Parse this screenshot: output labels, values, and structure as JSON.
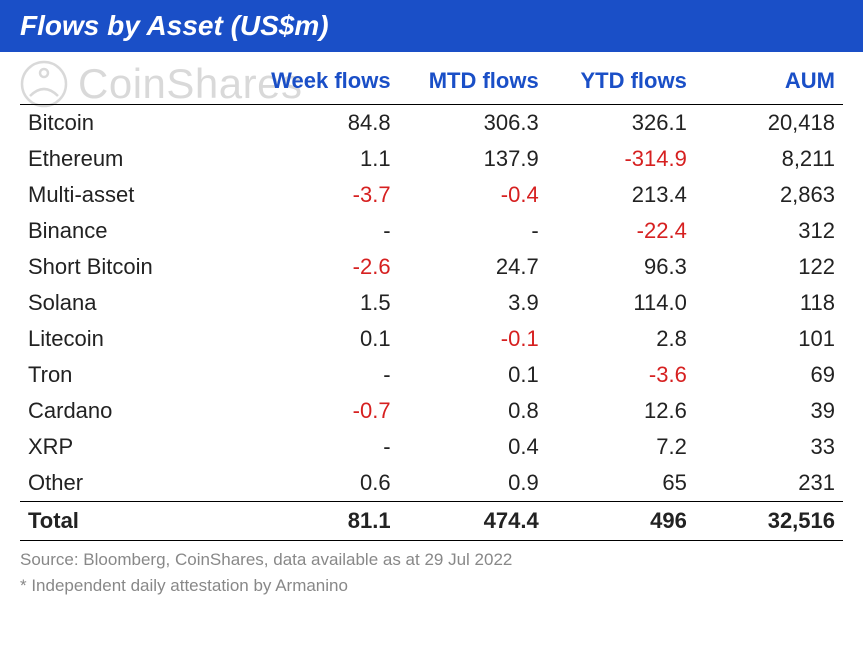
{
  "title": "Flows by Asset (US$m)",
  "watermark": "CoinShares",
  "columns": [
    "",
    "Week flows",
    "MTD flows",
    "YTD flows",
    "AUM"
  ],
  "rows": [
    {
      "asset": "Bitcoin",
      "week": "84.8",
      "week_neg": false,
      "mtd": "306.3",
      "mtd_neg": false,
      "ytd": "326.1",
      "ytd_neg": false,
      "aum": "20,418"
    },
    {
      "asset": "Ethereum",
      "week": "1.1",
      "week_neg": false,
      "mtd": "137.9",
      "mtd_neg": false,
      "ytd": "-314.9",
      "ytd_neg": true,
      "aum": "8,211"
    },
    {
      "asset": "Multi-asset",
      "week": "-3.7",
      "week_neg": true,
      "mtd": "-0.4",
      "mtd_neg": true,
      "ytd": "213.4",
      "ytd_neg": false,
      "aum": "2,863"
    },
    {
      "asset": "Binance",
      "week": "-",
      "week_neg": false,
      "mtd": "-",
      "mtd_neg": false,
      "ytd": "-22.4",
      "ytd_neg": true,
      "aum": "312"
    },
    {
      "asset": "Short Bitcoin",
      "week": "-2.6",
      "week_neg": true,
      "mtd": "24.7",
      "mtd_neg": false,
      "ytd": "96.3",
      "ytd_neg": false,
      "aum": "122"
    },
    {
      "asset": "Solana",
      "week": "1.5",
      "week_neg": false,
      "mtd": "3.9",
      "mtd_neg": false,
      "ytd": "114.0",
      "ytd_neg": false,
      "aum": "118"
    },
    {
      "asset": "Litecoin",
      "week": "0.1",
      "week_neg": false,
      "mtd": "-0.1",
      "mtd_neg": true,
      "ytd": "2.8",
      "ytd_neg": false,
      "aum": "101"
    },
    {
      "asset": "Tron",
      "week": "-",
      "week_neg": false,
      "mtd": "0.1",
      "mtd_neg": false,
      "ytd": "-3.6",
      "ytd_neg": true,
      "aum": "69"
    },
    {
      "asset": "Cardano",
      "week": "-0.7",
      "week_neg": true,
      "mtd": "0.8",
      "mtd_neg": false,
      "ytd": "12.6",
      "ytd_neg": false,
      "aum": "39"
    },
    {
      "asset": "XRP",
      "week": "-",
      "week_neg": false,
      "mtd": "0.4",
      "mtd_neg": false,
      "ytd": "7.2",
      "ytd_neg": false,
      "aum": "33"
    },
    {
      "asset": "Other",
      "week": "0.6",
      "week_neg": false,
      "mtd": "0.9",
      "mtd_neg": false,
      "ytd": "65",
      "ytd_neg": false,
      "aum": "231"
    }
  ],
  "total": {
    "asset": "Total",
    "week": "81.1",
    "mtd": "474.4",
    "ytd": "496",
    "aum": "32,516"
  },
  "footnote1": "Source: Bloomberg, CoinShares, data available as at 29 Jul 2022",
  "footnote2": "* Independent daily attestation by Armanino",
  "colors": {
    "header_bg": "#1a4fc7",
    "header_text": "#ffffff",
    "col_header_text": "#1a4fc7",
    "body_text": "#222222",
    "negative": "#d62020",
    "footnote": "#888888",
    "border": "#000000"
  },
  "typography": {
    "title_fontsize": 28,
    "body_fontsize": 22,
    "footnote_fontsize": 17
  }
}
